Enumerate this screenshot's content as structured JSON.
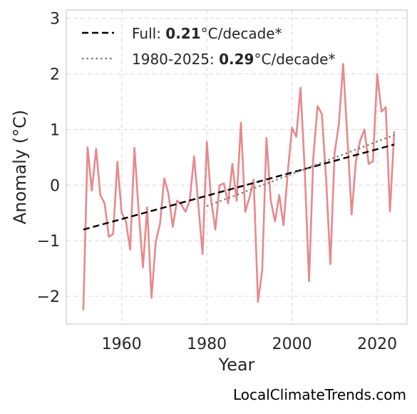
{
  "chart_data": {
    "type": "line",
    "xlabel": "Year",
    "ylabel": "Anomaly (°C)",
    "xlim": [
      1947,
      2027
    ],
    "ylim": [
      -2.5,
      3.15
    ],
    "xticks": [
      1960,
      1980,
      2000,
      2020
    ],
    "xtick_labels": [
      "1960",
      "1980",
      "2000",
      "2020"
    ],
    "yticks": [
      -2,
      -1,
      0,
      1,
      2,
      3
    ],
    "ytick_labels": [
      "−2",
      "−1",
      "0",
      "1",
      "2",
      "3"
    ],
    "grid": true,
    "legend_position": "top-left",
    "series": [
      {
        "style": "solid",
        "color": "#e8888c",
        "x": [
          1951,
          1952,
          1953,
          1954,
          1955,
          1956,
          1957,
          1958,
          1959,
          1960,
          1961,
          1962,
          1963,
          1964,
          1965,
          1966,
          1967,
          1968,
          1969,
          1970,
          1971,
          1972,
          1973,
          1974,
          1975,
          1976,
          1977,
          1978,
          1979,
          1980,
          1981,
          1982,
          1983,
          1984,
          1985,
          1986,
          1987,
          1988,
          1989,
          1990,
          1991,
          1992,
          1993,
          1994,
          1995,
          1996,
          1997,
          1998,
          1999,
          2000,
          2001,
          2002,
          2003,
          2004,
          2005,
          2006,
          2007,
          2008,
          2009,
          2010,
          2011,
          2012,
          2013,
          2014,
          2015,
          2016,
          2017,
          2018,
          2019,
          2020,
          2021,
          2022,
          2023,
          2024
        ],
        "y": [
          -2.25,
          0.68,
          -0.1,
          0.65,
          -0.18,
          -0.33,
          -0.93,
          -0.88,
          0.42,
          -0.5,
          -0.65,
          -1.16,
          0.67,
          -0.48,
          -1.48,
          -0.4,
          -2.03,
          -1.02,
          -0.7,
          0.12,
          -0.16,
          -0.75,
          -0.28,
          -0.35,
          -0.48,
          -0.27,
          0.52,
          -0.35,
          -1.24,
          0.78,
          -0.27,
          -0.8,
          0.0,
          0.03,
          -0.33,
          0.38,
          -0.28,
          1.12,
          -0.48,
          -0.23,
          0.1,
          -2.1,
          -1.54,
          0.85,
          -0.27,
          -0.65,
          -0.18,
          -0.72,
          0.23,
          1.03,
          0.87,
          1.75,
          0.25,
          -1.73,
          0.5,
          1.42,
          1.28,
          0.12,
          -1.42,
          0.58,
          1.1,
          2.18,
          0.85,
          -0.53,
          0.43,
          0.8,
          1.0,
          0.38,
          0.43,
          2.0,
          1.32,
          1.4,
          -0.47,
          0.97
        ]
      },
      {
        "style": "dashed",
        "color": "#000000",
        "label": "Full:",
        "value": "0.21",
        "unit": "°C/decade*",
        "x": [
          1951,
          2024
        ],
        "y": [
          -0.8,
          0.73
        ]
      },
      {
        "style": "dotted",
        "color": "#808080",
        "label": "1980-2025:",
        "value": "0.29",
        "unit": "°C/decade*",
        "x": [
          1980,
          2024
        ],
        "y": [
          -0.38,
          0.9
        ]
      }
    ]
  },
  "credit": "LocalClimateTrends.com"
}
